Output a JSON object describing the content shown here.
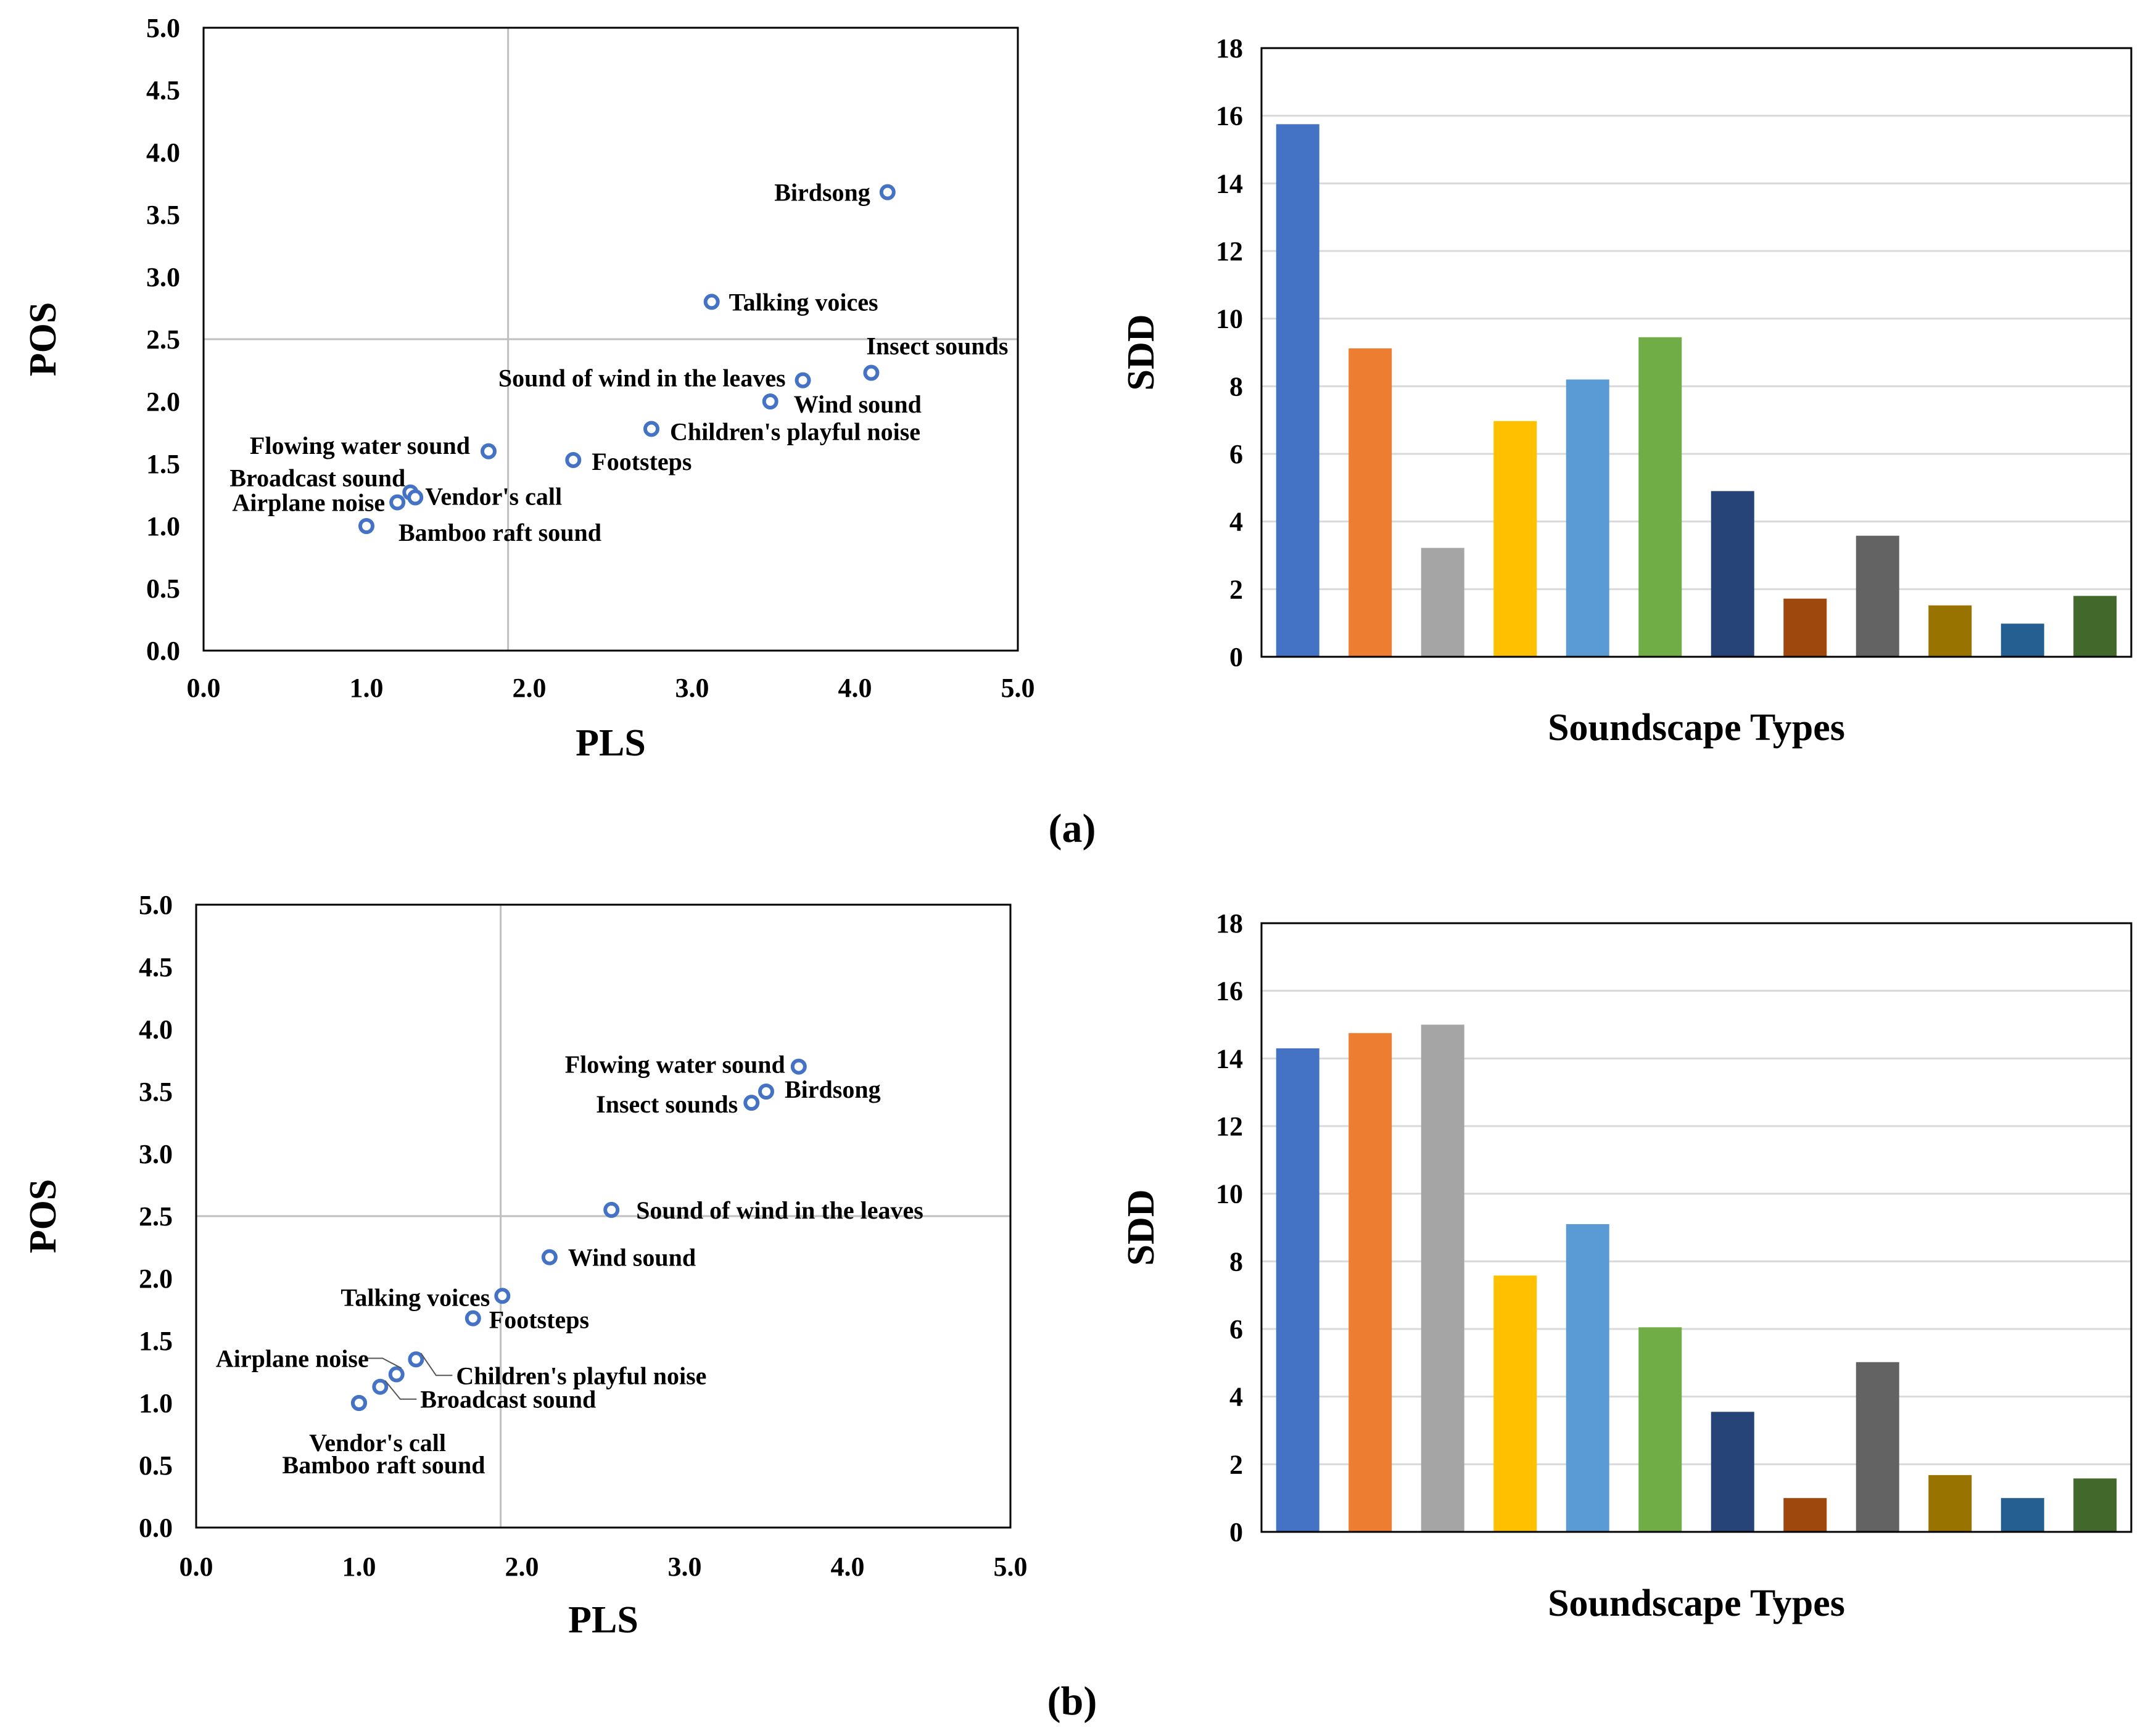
{
  "panels": [
    {
      "label": "(a)",
      "scatter": {
        "type": "scatter",
        "xlabel": "PLS",
        "ylabel": "POS",
        "xlim": [
          0,
          5
        ],
        "ylim": [
          0,
          5
        ],
        "xticks": [
          "0.0",
          "1.0",
          "2.0",
          "3.0",
          "4.0",
          "5.0"
        ],
        "yticks": [
          "0.0",
          "0.5",
          "1.0",
          "1.5",
          "2.0",
          "2.5",
          "3.0",
          "3.5",
          "4.0",
          "4.5",
          "5.0"
        ],
        "ref_x": 1.87,
        "ref_y": 2.5,
        "points": [
          {
            "label": "Birdsong",
            "x": 4.2,
            "y": 3.68
          },
          {
            "label": "Talking voices",
            "x": 3.12,
            "y": 2.8
          },
          {
            "label": "Insect sounds",
            "x": 4.1,
            "y": 2.23
          },
          {
            "label": "Sound of wind in the leaves",
            "x": 3.68,
            "y": 2.17
          },
          {
            "label": "Wind sound",
            "x": 3.48,
            "y": 2.0
          },
          {
            "label": "Children's playful noise",
            "x": 2.75,
            "y": 1.78
          },
          {
            "label": "Flowing water sound",
            "x": 1.75,
            "y": 1.6
          },
          {
            "label": "Footsteps",
            "x": 2.27,
            "y": 1.53
          },
          {
            "label": "Broadcast sound",
            "x": 1.27,
            "y": 1.27
          },
          {
            "label": "Vendor's call",
            "x": 1.3,
            "y": 1.23
          },
          {
            "label": "Airplane noise",
            "x": 1.19,
            "y": 1.19
          },
          {
            "label": "Bamboo raft sound",
            "x": 1.0,
            "y": 1.0
          }
        ]
      },
      "bars": {
        "type": "bar",
        "xlabel": "Soundscape Types",
        "ylabel": "SDD",
        "ylim": [
          0,
          18
        ],
        "yticks": [
          "0",
          "2",
          "4",
          "6",
          "8",
          "10",
          "12",
          "14",
          "16",
          "18"
        ],
        "values": [
          15.75,
          9.12,
          3.22,
          6.97,
          8.2,
          9.45,
          4.9,
          1.72,
          3.58,
          1.52,
          0.98,
          1.8
        ],
        "colors": [
          "#4472C4",
          "#ED7D31",
          "#A5A5A5",
          "#FFC000",
          "#5B9BD5",
          "#70AD47",
          "#264478",
          "#9E480E",
          "#636363",
          "#997300",
          "#255E91",
          "#43682B"
        ]
      }
    },
    {
      "label": "(b)",
      "scatter": {
        "type": "scatter",
        "xlabel": "PLS",
        "ylabel": "POS",
        "xlim": [
          0,
          5
        ],
        "ylim": [
          0,
          5
        ],
        "xticks": [
          "0.0",
          "1.0",
          "2.0",
          "3.0",
          "4.0",
          "5.0"
        ],
        "yticks": [
          "0.0",
          "0.5",
          "1.0",
          "1.5",
          "2.0",
          "2.5",
          "3.0",
          "3.5",
          "4.0",
          "4.5",
          "5.0"
        ],
        "ref_x": 1.87,
        "ref_y": 2.5,
        "points": [
          {
            "label": "Flowing water sound",
            "x": 3.7,
            "y": 3.7
          },
          {
            "label": "Birdsong",
            "x": 3.5,
            "y": 3.5
          },
          {
            "label": "Insect sounds",
            "x": 3.41,
            "y": 3.41
          },
          {
            "label": "Sound of wind in the leaves",
            "x": 2.55,
            "y": 2.55
          },
          {
            "label": "Wind sound",
            "x": 2.17,
            "y": 2.17
          },
          {
            "label": "Talking voices",
            "x": 1.88,
            "y": 1.86
          },
          {
            "label": "Footsteps",
            "x": 1.7,
            "y": 1.68
          },
          {
            "label": "Children's playful noise",
            "x": 1.35,
            "y": 1.35
          },
          {
            "label": "Airplane noise",
            "x": 1.23,
            "y": 1.23
          },
          {
            "label": "Broadcast sound",
            "x": 1.13,
            "y": 1.13
          },
          {
            "label": "Vendor's call",
            "x": 1.0,
            "y": 1.0
          },
          {
            "label": "Bamboo raft sound",
            "x": 1.0,
            "y": 1.0
          }
        ]
      },
      "bars": {
        "type": "bar",
        "xlabel": "Soundscape Types",
        "ylabel": "SDD",
        "ylim": [
          0,
          18
        ],
        "yticks": [
          "0",
          "2",
          "4",
          "6",
          "8",
          "10",
          "12",
          "14",
          "16",
          "18"
        ],
        "values": [
          14.3,
          14.75,
          15.0,
          7.58,
          9.1,
          6.05,
          3.55,
          1.0,
          5.02,
          1.68,
          1.0,
          1.58
        ],
        "colors": [
          "#4472C4",
          "#ED7D31",
          "#A5A5A5",
          "#FFC000",
          "#5B9BD5",
          "#70AD47",
          "#264478",
          "#9E480E",
          "#636363",
          "#997300",
          "#255E91",
          "#43682B"
        ]
      }
    }
  ]
}
